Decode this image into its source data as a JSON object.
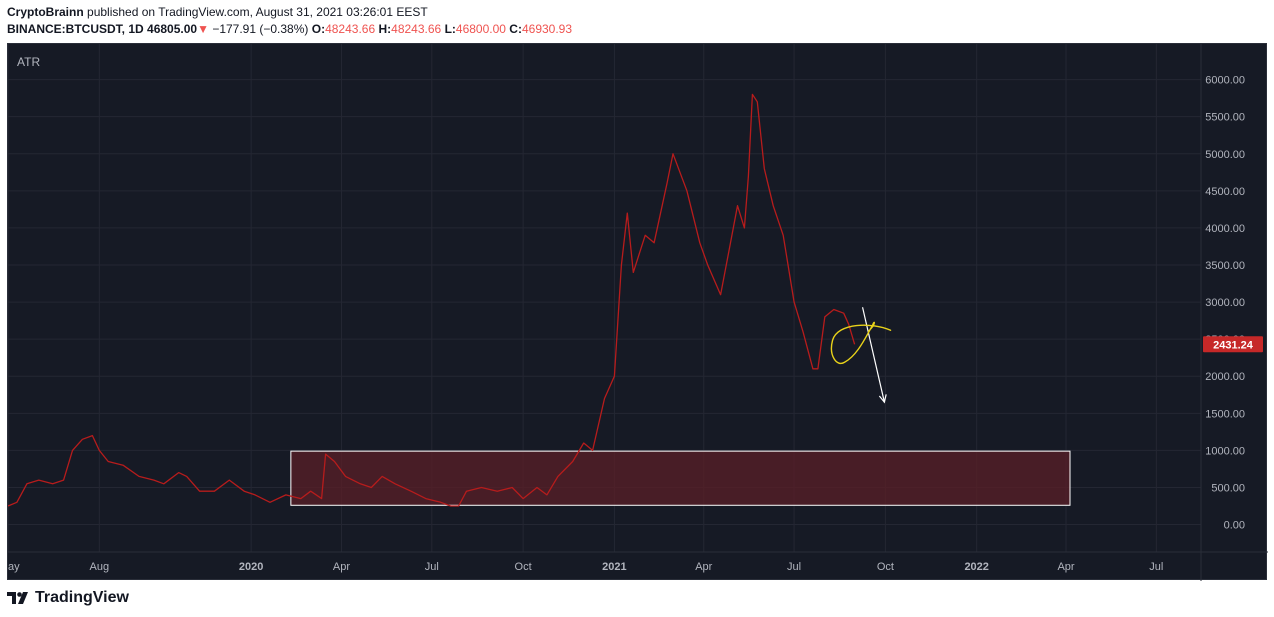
{
  "header": {
    "author": "CryptoBrainn",
    "published_text": "published on TradingView.com, August 31, 2021 03:26:01 EEST",
    "symbol": "BINANCE:BTCUSDT, 1D",
    "price": "46805.00",
    "down_arrow": "▼",
    "change": "−177.91 (−0.38%)",
    "o_label": "O:",
    "o_value": "48243.66",
    "h_label": "H:",
    "h_value": "48243.66",
    "l_label": "L:",
    "l_value": "46800.00",
    "c_label": "C:",
    "c_value": "46930.93"
  },
  "colors": {
    "background": "#161a25",
    "series": "#b71c1c",
    "price_tag": "#c62828",
    "zone_fill": "#5a1f27",
    "zone_stroke": "#ffffff",
    "yellow_drawing": "#e8d21a",
    "arrow": "#ffffff",
    "axis_text": "#b2b5be"
  },
  "footer": {
    "brand": "TradingView",
    "logo_icon": "tradingview-logo-icon"
  },
  "chart_data": {
    "type": "line",
    "indicator_label": "ATR",
    "ylim": [
      -370,
      6480
    ],
    "y_ticks": [
      "0.00",
      "500.00",
      "1000.00",
      "1500.00",
      "2000.00",
      "2500.00",
      "3000.00",
      "3500.00",
      "4000.00",
      "4500.00",
      "5000.00",
      "5500.00",
      "6000.00"
    ],
    "y_tick_values": [
      0,
      500,
      1000,
      1500,
      2000,
      2500,
      3000,
      3500,
      4000,
      4500,
      5000,
      5500,
      6000
    ],
    "last_value_label": "2431.24",
    "last_value": 2431.24,
    "x_ticks": [
      {
        "label": "ay",
        "date": "2019-05-01"
      },
      {
        "label": "Aug",
        "date": "2019-08-01"
      },
      {
        "label": "2020",
        "date": "2020-01-01"
      },
      {
        "label": "Apr",
        "date": "2020-04-01"
      },
      {
        "label": "Jul",
        "date": "2020-07-01"
      },
      {
        "label": "Oct",
        "date": "2020-10-01"
      },
      {
        "label": "2021",
        "date": "2021-01-01"
      },
      {
        "label": "Apr",
        "date": "2021-04-01"
      },
      {
        "label": "Jul",
        "date": "2021-07-01"
      },
      {
        "label": "Oct",
        "date": "2021-10-01"
      },
      {
        "label": "2022",
        "date": "2022-01-01"
      },
      {
        "label": "Apr",
        "date": "2022-04-01"
      },
      {
        "label": "Jul",
        "date": "2022-07-01"
      }
    ],
    "xlim": [
      "2019-05-01",
      "2022-08-15"
    ],
    "series": [
      {
        "x": [
          "2019-05-01",
          "2019-05-10",
          "2019-05-20",
          "2019-06-01",
          "2019-06-15",
          "2019-06-26",
          "2019-07-05",
          "2019-07-15",
          "2019-07-25",
          "2019-08-01",
          "2019-08-10",
          "2019-08-25",
          "2019-09-10",
          "2019-09-25",
          "2019-10-05",
          "2019-10-20",
          "2019-10-28",
          "2019-11-10",
          "2019-11-25",
          "2019-12-10",
          "2019-12-25",
          "2020-01-05",
          "2020-01-20",
          "2020-02-05",
          "2020-02-20",
          "2020-03-01",
          "2020-03-12",
          "2020-03-16",
          "2020-03-25",
          "2020-04-05",
          "2020-04-20",
          "2020-05-01",
          "2020-05-12",
          "2020-05-25",
          "2020-06-10",
          "2020-06-25",
          "2020-07-10",
          "2020-07-20",
          "2020-07-28",
          "2020-08-05",
          "2020-08-20",
          "2020-09-05",
          "2020-09-20",
          "2020-10-01",
          "2020-10-15",
          "2020-10-25",
          "2020-11-05",
          "2020-11-20",
          "2020-12-01",
          "2020-12-10",
          "2020-12-22",
          "2021-01-01",
          "2021-01-08",
          "2021-01-14",
          "2021-01-20",
          "2021-02-01",
          "2021-02-10",
          "2021-02-23",
          "2021-03-01",
          "2021-03-15",
          "2021-03-28",
          "2021-04-05",
          "2021-04-18",
          "2021-04-28",
          "2021-05-05",
          "2021-05-12",
          "2021-05-16",
          "2021-05-20",
          "2021-05-25",
          "2021-06-01",
          "2021-06-10",
          "2021-06-20",
          "2021-07-01",
          "2021-07-10",
          "2021-07-20",
          "2021-07-25",
          "2021-08-01",
          "2021-08-10",
          "2021-08-20",
          "2021-08-25",
          "2021-08-31"
        ],
        "y": [
          250,
          300,
          550,
          600,
          550,
          600,
          1000,
          1150,
          1200,
          1000,
          850,
          800,
          650,
          600,
          550,
          700,
          650,
          450,
          450,
          600,
          450,
          400,
          300,
          400,
          350,
          450,
          350,
          950,
          850,
          650,
          550,
          500,
          650,
          550,
          450,
          350,
          300,
          250,
          250,
          450,
          500,
          450,
          500,
          350,
          500,
          400,
          650,
          850,
          1100,
          1000,
          1700,
          2000,
          3500,
          4200,
          3400,
          3900,
          3800,
          4600,
          5000,
          4500,
          3800,
          3500,
          3100,
          3800,
          4300,
          4000,
          4700,
          5800,
          5700,
          4800,
          4300,
          3900,
          3000,
          2600,
          2100,
          2100,
          2800,
          2900,
          2850,
          2700,
          2431.24
        ]
      }
    ],
    "highlight_zone": {
      "x_start": "2020-02-10",
      "x_end": "2022-04-05",
      "y_low": 260,
      "y_high": 990
    },
    "drawings": [
      {
        "type": "arrow",
        "from": {
          "date": "2021-09-08",
          "value": 2930
        },
        "to": {
          "date": "2021-09-30",
          "value": 1650
        }
      },
      {
        "type": "freehand_curve",
        "color": "yellow"
      }
    ]
  }
}
